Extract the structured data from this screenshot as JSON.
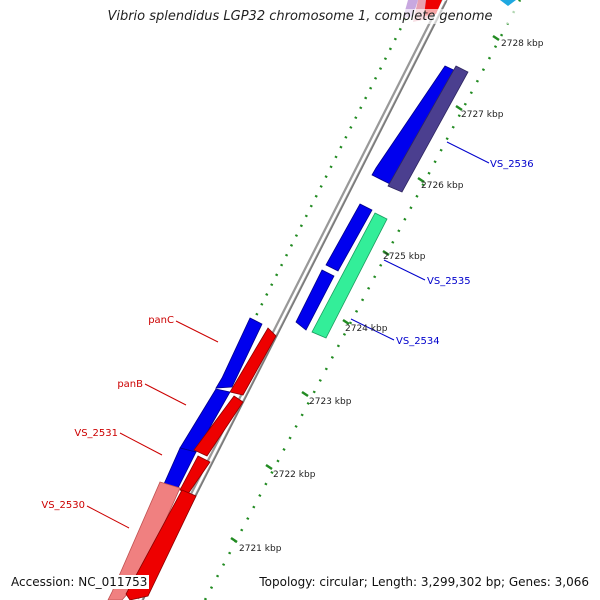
{
  "title": "Vibrio splendidus LGP32 chromosome 1, complete genome",
  "footer": {
    "accession": "Accession: NC_011753",
    "topology": "Topology: circular; Length: 3,299,302 bp; Genes: 3,066"
  },
  "colors": {
    "forward_cds": "#0000ee",
    "reverse_cds": "#ee0000",
    "gc_dots": "#228b22",
    "axis": "#888888",
    "label_forward": "#0000cc",
    "label_reverse": "#cc0000",
    "purple_cds": "#4b3f8f",
    "teal_cds": "#33ee99",
    "pink_cds": "#f08080",
    "cyan_cds": "#1fa8e0"
  },
  "ticks": [
    {
      "label": "2728 kbp"
    },
    {
      "label": "2727 kbp"
    },
    {
      "label": "2726 kbp"
    },
    {
      "label": "2725 kbp"
    },
    {
      "label": "2724 kbp"
    },
    {
      "label": "2723 kbp"
    },
    {
      "label": "2722 kbp"
    },
    {
      "label": "2721 kbp"
    }
  ],
  "genes": [
    {
      "label": "VS_2536",
      "strand": "forward"
    },
    {
      "label": "VS_2535",
      "strand": "forward"
    },
    {
      "label": "VS_2534",
      "strand": "forward"
    },
    {
      "label": "panC",
      "strand": "reverse"
    },
    {
      "label": "panB",
      "strand": "reverse"
    },
    {
      "label": "VS_2531",
      "strand": "reverse"
    },
    {
      "label": "VS_2530",
      "strand": "reverse"
    }
  ]
}
